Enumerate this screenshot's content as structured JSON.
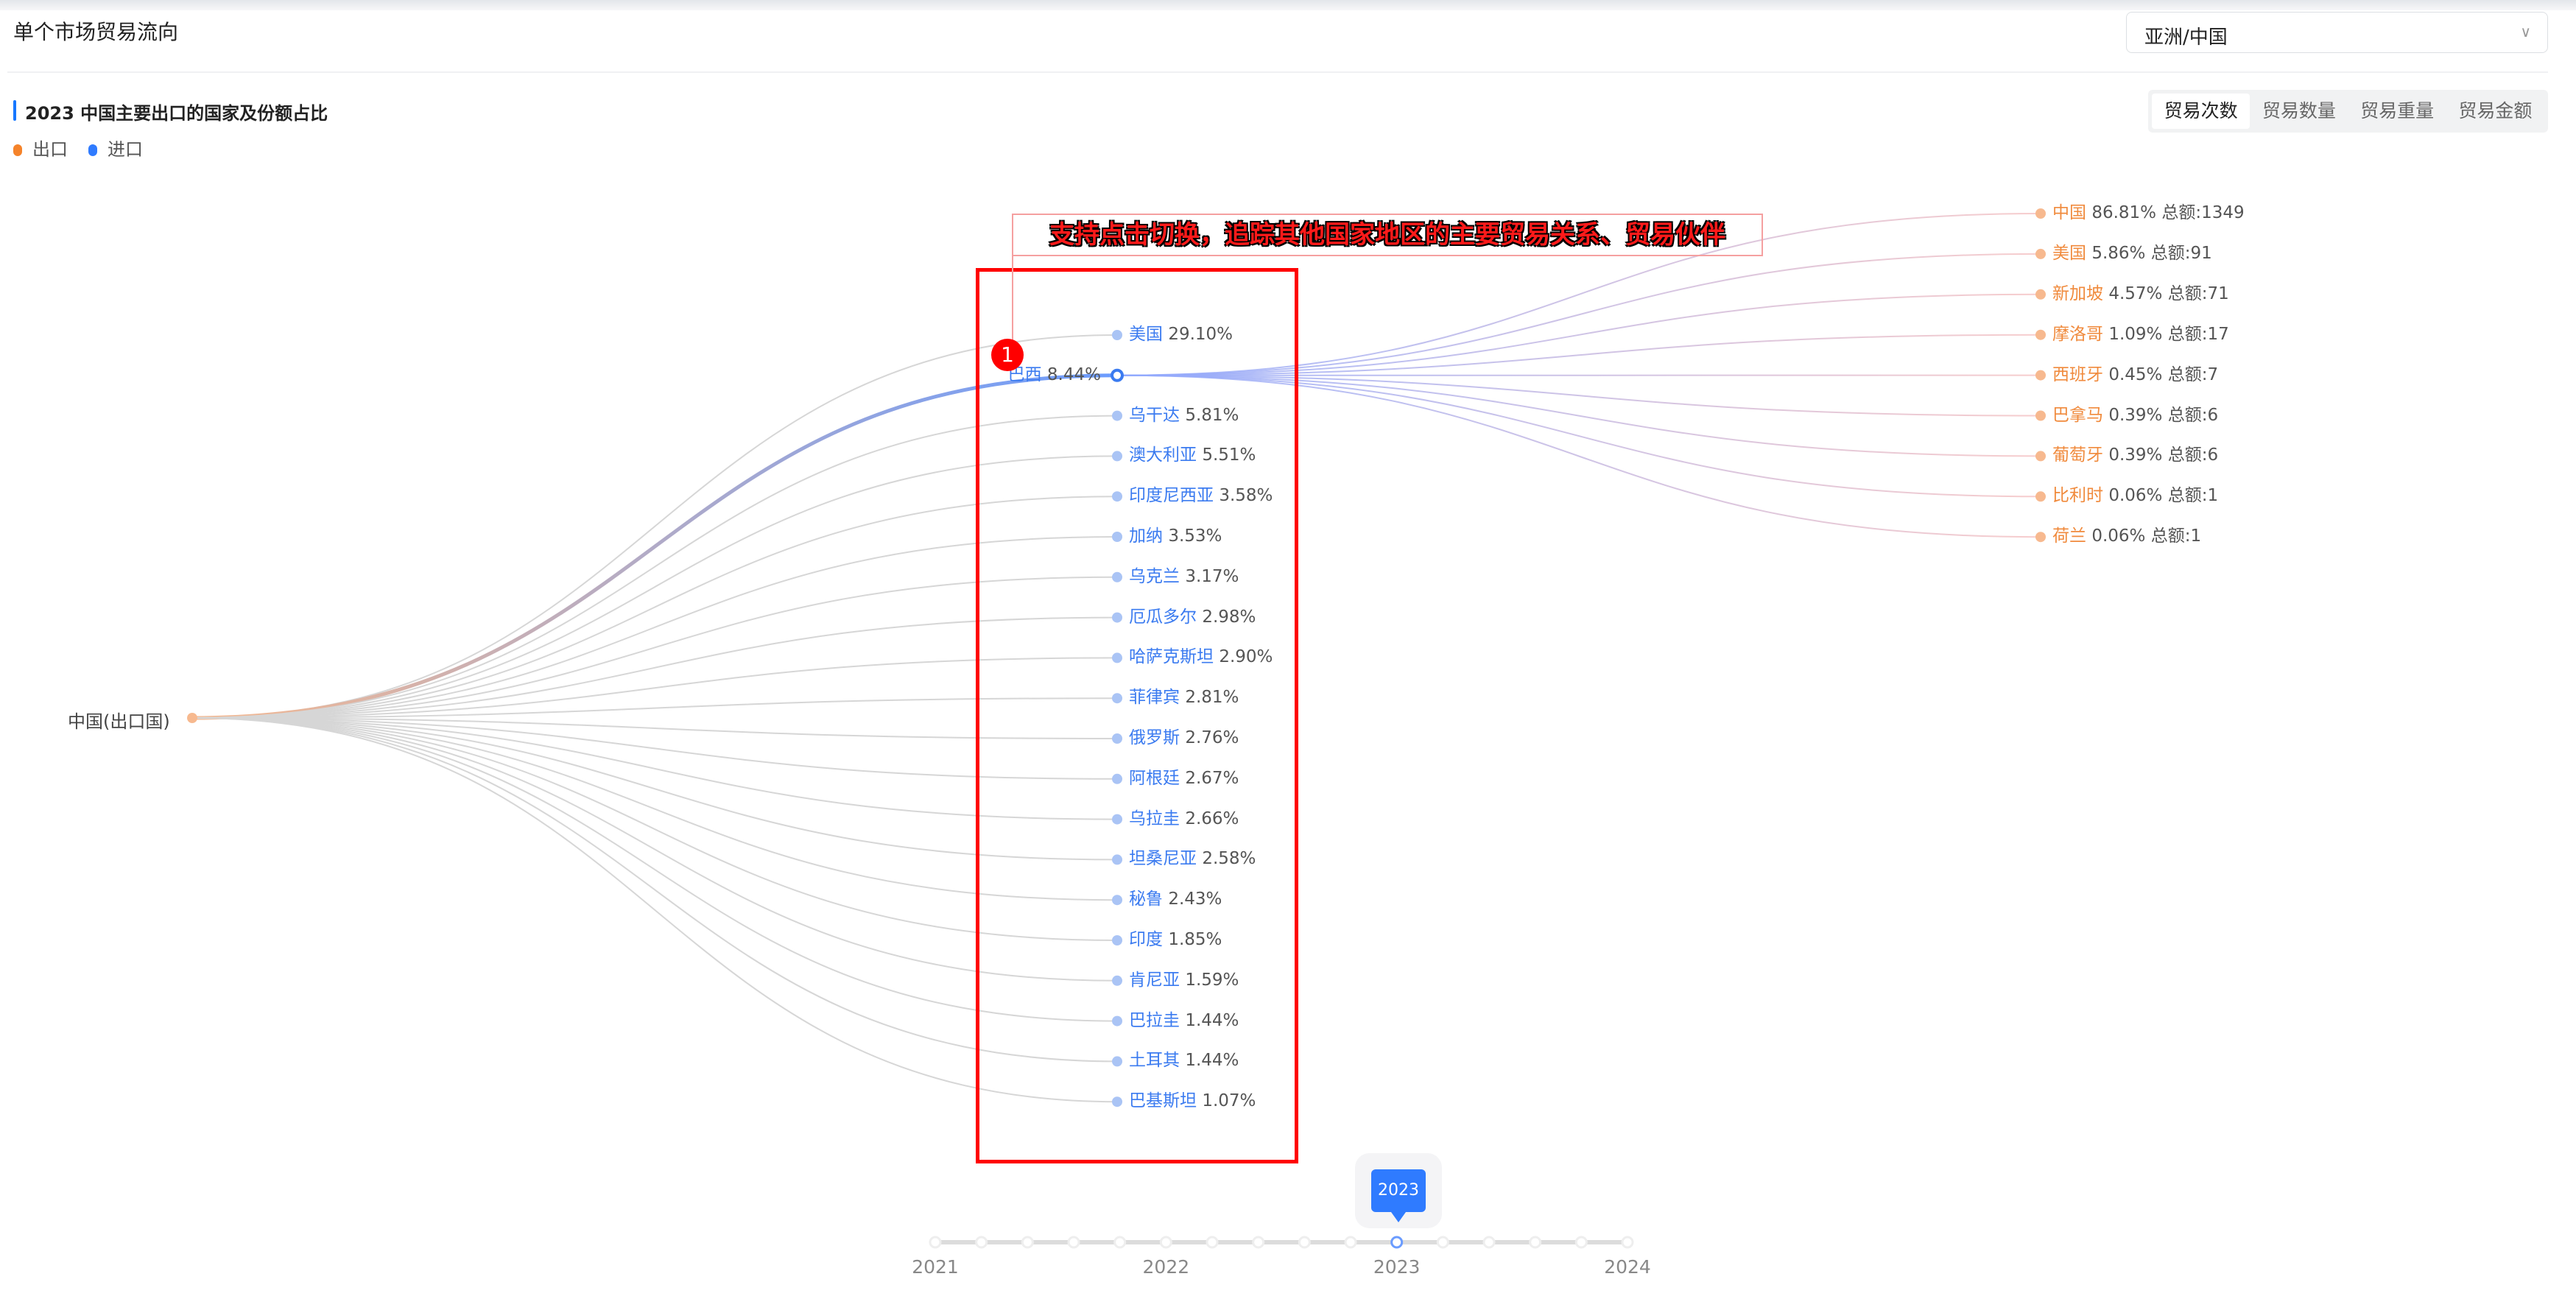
{
  "header": {
    "title": "单个市场贸易流向",
    "region_select": "亚洲/中国"
  },
  "section": {
    "title": "2023 中国主要出口的国家及份额占比"
  },
  "legend": [
    {
      "label": "出口",
      "color": "#f5832a"
    },
    {
      "label": "进口",
      "color": "#2f7bff"
    }
  ],
  "tabs": [
    {
      "label": "贸易次数",
      "active": true
    },
    {
      "label": "贸易数量"
    },
    {
      "label": "贸易重量"
    },
    {
      "label": "贸易金额"
    }
  ],
  "annotation": {
    "text": "支持点击切换，追踪其他国家地区的主要贸易关系、贸易伙伴",
    "badge": "1"
  },
  "chart_data": {
    "type": "tree",
    "root": "中国(出口国)",
    "level1": [
      {
        "name": "美国",
        "pct": "29.10%"
      },
      {
        "name": "巴西",
        "pct": "8.44%",
        "selected": true
      },
      {
        "name": "乌干达",
        "pct": "5.81%"
      },
      {
        "name": "澳大利亚",
        "pct": "5.51%"
      },
      {
        "name": "印度尼西亚",
        "pct": "3.58%"
      },
      {
        "name": "加纳",
        "pct": "3.53%"
      },
      {
        "name": "乌克兰",
        "pct": "3.17%"
      },
      {
        "name": "厄瓜多尔",
        "pct": "2.98%"
      },
      {
        "name": "哈萨克斯坦",
        "pct": "2.90%"
      },
      {
        "name": "菲律宾",
        "pct": "2.81%"
      },
      {
        "name": "俄罗斯",
        "pct": "2.76%"
      },
      {
        "name": "阿根廷",
        "pct": "2.67%"
      },
      {
        "name": "乌拉圭",
        "pct": "2.66%"
      },
      {
        "name": "坦桑尼亚",
        "pct": "2.58%"
      },
      {
        "name": "秘鲁",
        "pct": "2.43%"
      },
      {
        "name": "印度",
        "pct": "1.85%"
      },
      {
        "name": "肯尼亚",
        "pct": "1.59%"
      },
      {
        "name": "巴拉圭",
        "pct": "1.44%"
      },
      {
        "name": "土耳其",
        "pct": "1.44%"
      },
      {
        "name": "巴基斯坦",
        "pct": "1.07%"
      }
    ],
    "level2_of_selected": [
      {
        "name": "中国",
        "pct": "86.81%",
        "total": "总额:1349"
      },
      {
        "name": "美国",
        "pct": "5.86%",
        "total": "总额:91"
      },
      {
        "name": "新加坡",
        "pct": "4.57%",
        "total": "总额:71"
      },
      {
        "name": "摩洛哥",
        "pct": "1.09%",
        "total": "总额:17"
      },
      {
        "name": "西班牙",
        "pct": "0.45%",
        "total": "总额:7"
      },
      {
        "name": "巴拿马",
        "pct": "0.39%",
        "total": "总额:6"
      },
      {
        "name": "葡萄牙",
        "pct": "0.39%",
        "total": "总额:6"
      },
      {
        "name": "比利时",
        "pct": "0.06%",
        "total": "总额:1"
      },
      {
        "name": "荷兰",
        "pct": "0.06%",
        "total": "总额:1"
      }
    ],
    "colors": {
      "level1_text": "#3b7bf0",
      "level2_text": "#f08a3c",
      "link": "#d6d6d6",
      "highlight": "#6b9cff"
    }
  },
  "timeline": {
    "labels": [
      "2021",
      "2022",
      "2023",
      "2024"
    ],
    "current": "2023",
    "steps_per_year": 5
  }
}
